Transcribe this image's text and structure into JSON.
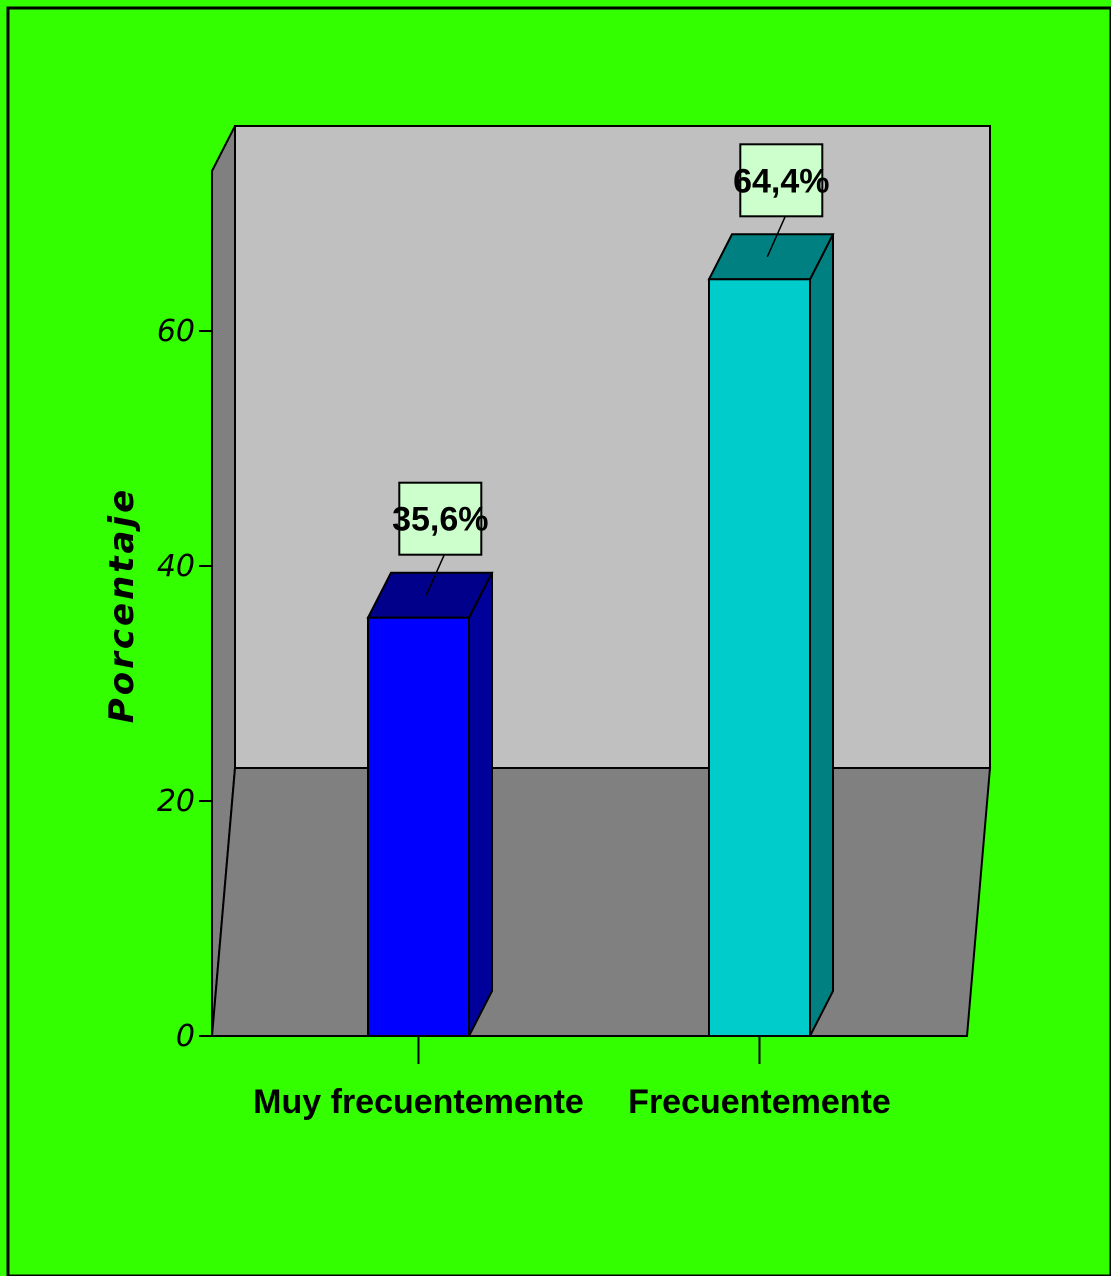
{
  "chart_data": {
    "type": "bar",
    "title": "",
    "xlabel": "",
    "ylabel": "Porcentaje",
    "categories": [
      "Muy frecuentemente",
      "Frecuentemente"
    ],
    "values": [
      35.6,
      64.4
    ],
    "data_labels": [
      "35,6%",
      "64,4%"
    ],
    "yticks": [
      0,
      20,
      40,
      60
    ],
    "ytick_labels": [
      "0",
      "20",
      "40",
      "60"
    ],
    "ylim": [
      0,
      75
    ],
    "grid": false,
    "legend": "none",
    "three_d": true,
    "colors": {
      "background": "#33ff00",
      "plot_wall": "#c0c0c0",
      "side_wall": "#808080",
      "floor": "#808080",
      "label_box": "#ccffcc",
      "bars": [
        {
          "front": "#0000ff",
          "top": "#00008b",
          "side": "#00009a"
        },
        {
          "front": "#00cccc",
          "top": "#008080",
          "side": "#008080"
        }
      ]
    }
  }
}
